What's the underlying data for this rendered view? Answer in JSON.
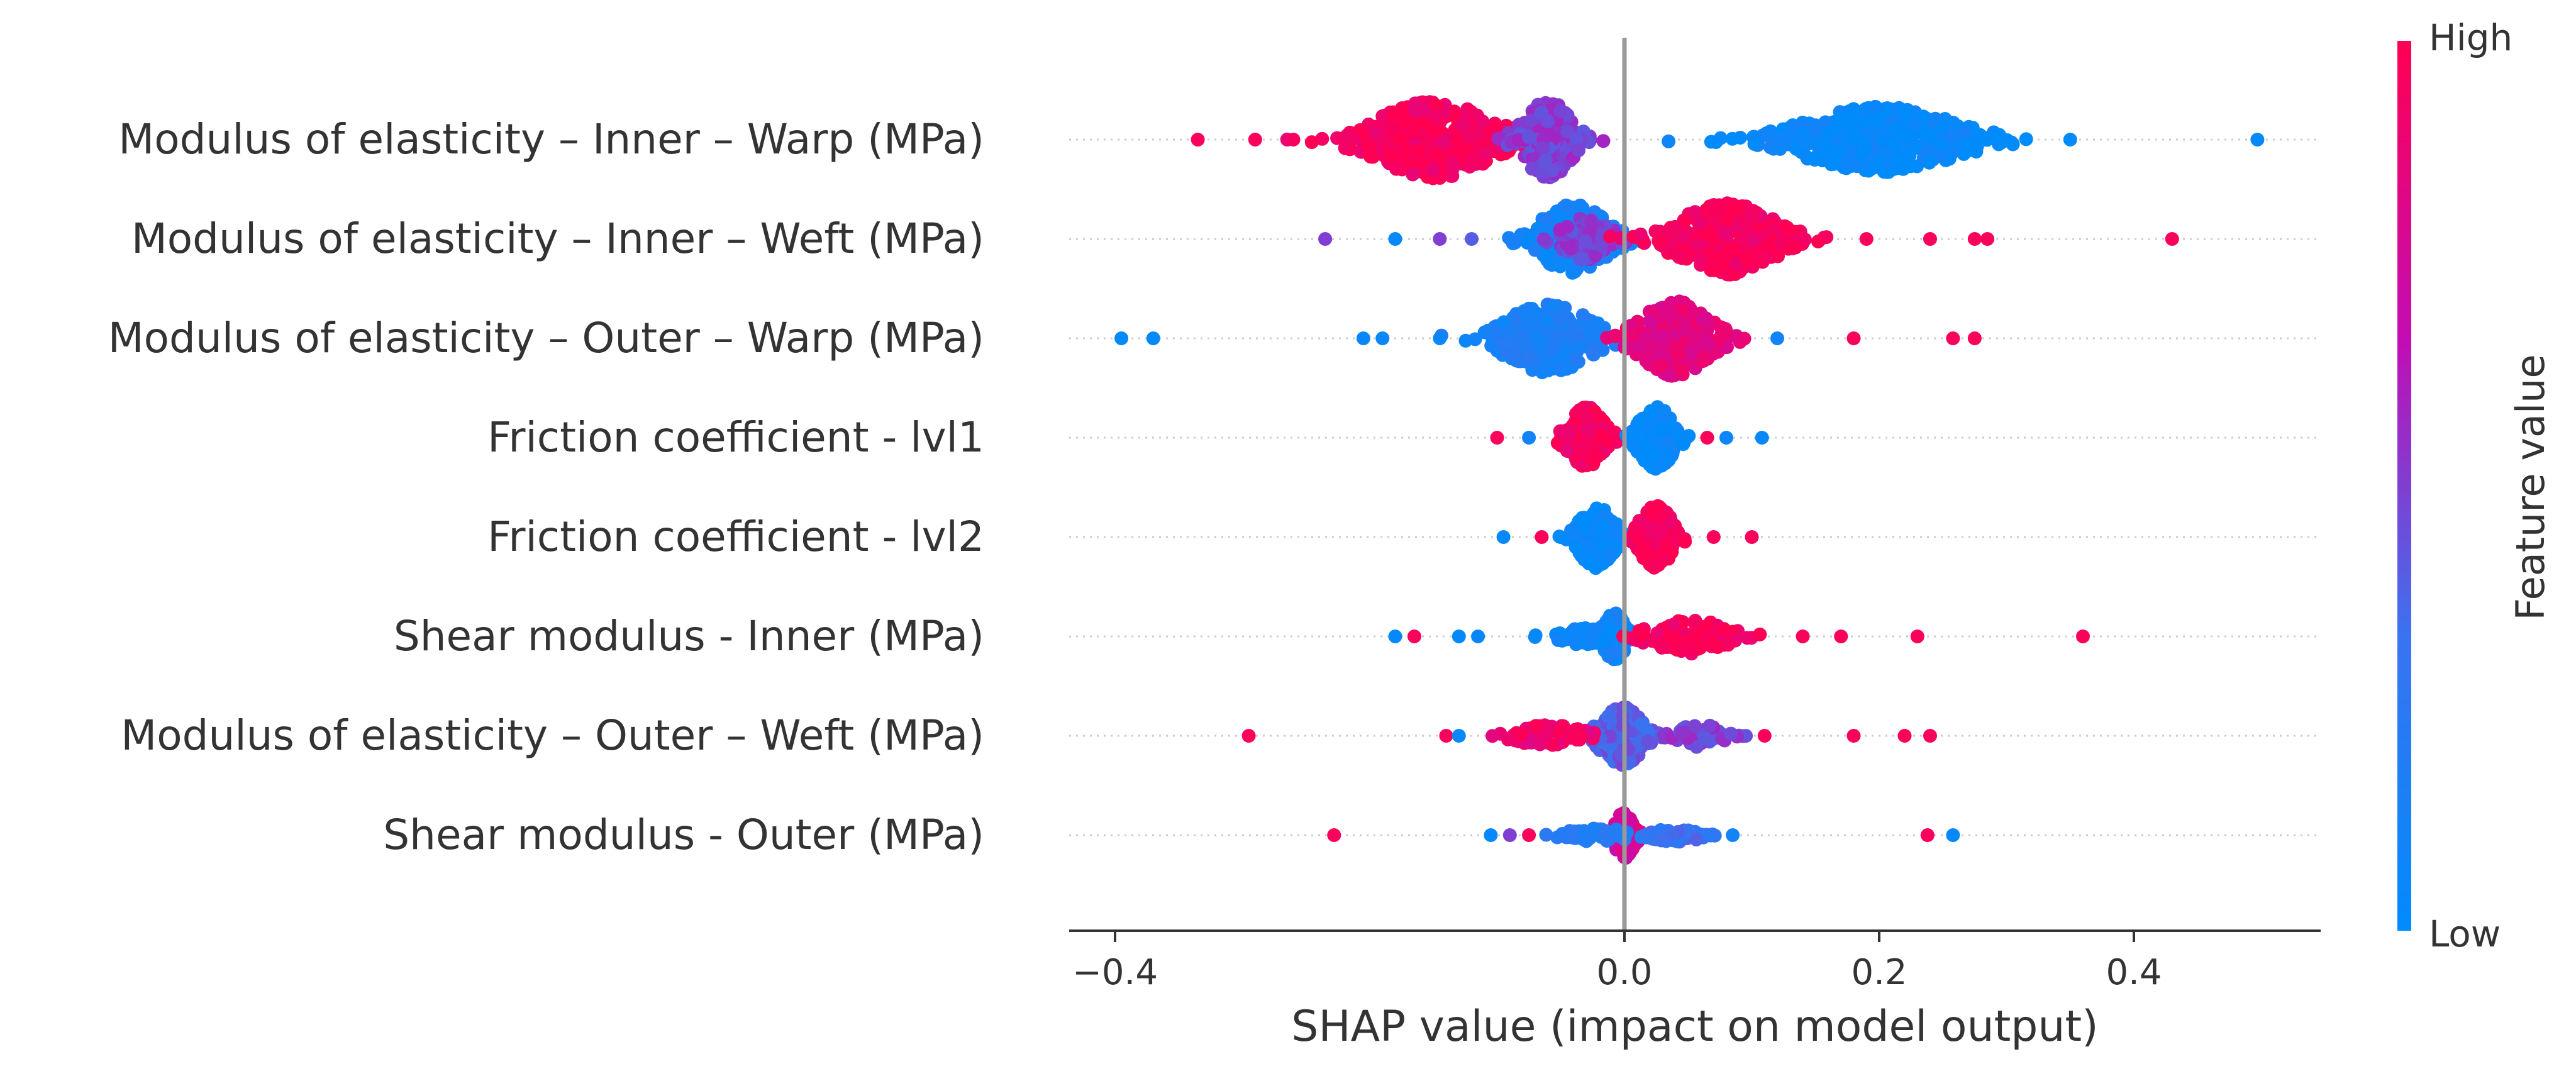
{
  "chart_data": {
    "type": "scatter",
    "subtype": "shap-beeswarm",
    "xlabel": "SHAP value (impact on model output)",
    "ylabel": "",
    "xlim": [
      -0.44,
      0.54
    ],
    "x_ticks": [
      -0.4,
      0.0,
      0.2,
      0.4
    ],
    "x_tick_labels": [
      "−0.4",
      "0.0",
      "0.2",
      "0.4"
    ],
    "zero_line": 0.0,
    "grid": false,
    "colorbar": {
      "label": "Feature value",
      "high_label": "High",
      "low_label": "Low",
      "colors": [
        "#008bfb",
        "#7a55e3",
        "#c10db5",
        "#ff0052"
      ]
    },
    "features": [
      {
        "name": "Modulus of elasticity – Inner – Warp (MPa)",
        "clusters": [
          {
            "center": -0.15,
            "spread": 0.06,
            "n": 420,
            "width": 1.0,
            "value": 0.97
          },
          {
            "center": -0.06,
            "spread": 0.025,
            "n": 200,
            "width": 1.0,
            "value": 0.5
          },
          {
            "center": 0.2,
            "spread": 0.08,
            "n": 460,
            "width": 0.85,
            "value": 0.03
          }
        ],
        "outliers": [
          {
            "x": -0.335,
            "v": 0.97
          },
          {
            "x": -0.29,
            "v": 0.97
          },
          {
            "x": -0.26,
            "v": 0.95
          },
          {
            "x": 0.35,
            "v": 0.02
          },
          {
            "x": 0.497,
            "v": 0.03
          }
        ]
      },
      {
        "name": "Modulus of elasticity – Inner – Weft (MPa)",
        "clusters": [
          {
            "center": -0.04,
            "spread": 0.035,
            "n": 230,
            "width": 0.9,
            "value": 0.1
          },
          {
            "center": -0.03,
            "spread": 0.025,
            "n": 70,
            "width": 0.55,
            "value": 0.5
          },
          {
            "center": 0.08,
            "spread": 0.05,
            "n": 300,
            "width": 0.95,
            "value": 0.97
          }
        ],
        "outliers": [
          {
            "x": -0.235,
            "v": 0.5
          },
          {
            "x": -0.18,
            "v": 0.03
          },
          {
            "x": -0.145,
            "v": 0.5
          },
          {
            "x": -0.12,
            "v": 0.4
          },
          {
            "x": 0.19,
            "v": 0.97
          },
          {
            "x": 0.24,
            "v": 0.97
          },
          {
            "x": 0.275,
            "v": 0.97
          },
          {
            "x": 0.285,
            "v": 0.97
          },
          {
            "x": 0.43,
            "v": 0.97
          }
        ]
      },
      {
        "name": "Modulus of elasticity – Outer – Warp (MPa)",
        "clusters": [
          {
            "center": -0.06,
            "spread": 0.045,
            "n": 240,
            "width": 0.9,
            "value": 0.15
          },
          {
            "center": 0.04,
            "spread": 0.035,
            "n": 260,
            "width": 1.0,
            "value": 0.85
          }
        ],
        "outliers": [
          {
            "x": -0.395,
            "v": 0.03
          },
          {
            "x": -0.37,
            "v": 0.03
          },
          {
            "x": -0.205,
            "v": 0.05
          },
          {
            "x": -0.19,
            "v": 0.05
          },
          {
            "x": -0.145,
            "v": 0.05
          },
          {
            "x": 0.12,
            "v": 0.1
          },
          {
            "x": 0.18,
            "v": 0.97
          },
          {
            "x": 0.258,
            "v": 0.97
          },
          {
            "x": 0.275,
            "v": 0.97
          }
        ]
      },
      {
        "name": "Friction coefficient - lvl1",
        "clusters": [
          {
            "center": -0.03,
            "spread": 0.018,
            "n": 190,
            "width": 0.8,
            "value": 0.97
          },
          {
            "center": 0.025,
            "spread": 0.018,
            "n": 200,
            "width": 0.8,
            "value": 0.03
          }
        ],
        "outliers": [
          {
            "x": -0.1,
            "v": 0.97
          },
          {
            "x": -0.075,
            "v": 0.1
          },
          {
            "x": 0.065,
            "v": 0.97
          },
          {
            "x": 0.08,
            "v": 0.05
          },
          {
            "x": 0.108,
            "v": 0.05
          }
        ]
      },
      {
        "name": "Friction coefficient - lvl2",
        "clusters": [
          {
            "center": -0.022,
            "spread": 0.018,
            "n": 190,
            "width": 0.8,
            "value": 0.03
          },
          {
            "center": 0.025,
            "spread": 0.018,
            "n": 190,
            "width": 0.8,
            "value": 0.97
          }
        ],
        "outliers": [
          {
            "x": -0.095,
            "v": 0.03
          },
          {
            "x": -0.065,
            "v": 0.97
          },
          {
            "x": 0.07,
            "v": 0.97
          },
          {
            "x": 0.1,
            "v": 0.97
          }
        ]
      },
      {
        "name": "Shear modulus - Inner (MPa)",
        "clusters": [
          {
            "center": -0.008,
            "spread": 0.012,
            "n": 160,
            "width": 0.6,
            "value": 0.1
          },
          {
            "center": -0.03,
            "spread": 0.03,
            "n": 70,
            "width": 0.22,
            "value": 0.05
          },
          {
            "center": 0.05,
            "spread": 0.04,
            "n": 110,
            "width": 0.45,
            "value": 0.97
          }
        ],
        "outliers": [
          {
            "x": -0.18,
            "v": 0.03
          },
          {
            "x": -0.165,
            "v": 0.97
          },
          {
            "x": -0.13,
            "v": 0.03
          },
          {
            "x": -0.115,
            "v": 0.05
          },
          {
            "x": 0.14,
            "v": 0.97
          },
          {
            "x": 0.17,
            "v": 0.97
          },
          {
            "x": 0.23,
            "v": 0.97
          },
          {
            "x": 0.36,
            "v": 0.97
          }
        ]
      },
      {
        "name": "Modulus of elasticity – Outer – Weft (MPa)",
        "clusters": [
          {
            "center": -0.002,
            "spread": 0.022,
            "n": 200,
            "width": 0.75,
            "value": 0.4
          },
          {
            "center": -0.06,
            "spread": 0.035,
            "n": 60,
            "width": 0.3,
            "value": 0.9
          },
          {
            "center": 0.06,
            "spread": 0.025,
            "n": 60,
            "width": 0.3,
            "value": 0.5
          }
        ],
        "outliers": [
          {
            "x": -0.295,
            "v": 0.97
          },
          {
            "x": -0.14,
            "v": 0.97
          },
          {
            "x": -0.13,
            "v": 0.03
          },
          {
            "x": 0.11,
            "v": 0.97
          },
          {
            "x": 0.18,
            "v": 0.97
          },
          {
            "x": 0.22,
            "v": 0.97
          },
          {
            "x": 0.24,
            "v": 0.97
          }
        ]
      },
      {
        "name": "Shear modulus - Outer (MPa)",
        "clusters": [
          {
            "center": 0.0,
            "spread": 0.01,
            "n": 150,
            "width": 0.6,
            "value": 0.75
          },
          {
            "center": -0.02,
            "spread": 0.035,
            "n": 50,
            "width": 0.18,
            "value": 0.2
          },
          {
            "center": 0.04,
            "spread": 0.025,
            "n": 50,
            "width": 0.18,
            "value": 0.3
          }
        ],
        "outliers": [
          {
            "x": -0.228,
            "v": 0.97
          },
          {
            "x": -0.105,
            "v": 0.03
          },
          {
            "x": -0.09,
            "v": 0.5
          },
          {
            "x": -0.075,
            "v": 0.97
          },
          {
            "x": 0.085,
            "v": 0.1
          },
          {
            "x": 0.238,
            "v": 0.97
          },
          {
            "x": 0.258,
            "v": 0.03
          }
        ]
      }
    ]
  }
}
